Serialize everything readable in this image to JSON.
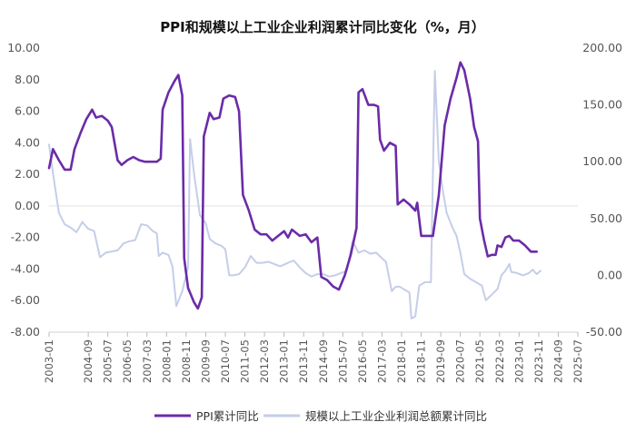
{
  "chart_data": {
    "type": "line",
    "title": "PPI和规模以上工业企业利润累计同比变化（%，月）",
    "xlabel": "",
    "ylabel_left": "",
    "ylabel_right": "",
    "ylim_left": [
      -8,
      10
    ],
    "ylim_right": [
      -50,
      200
    ],
    "yticks_left": [
      "10.00",
      "8.00",
      "6.00",
      "4.00",
      "2.00",
      "0.00",
      "-2.00",
      "-4.00",
      "-6.00",
      "-8.00"
    ],
    "yticks_right": [
      "200.00",
      "150.00",
      "100.00",
      "50.00",
      "0.00",
      "-50.00"
    ],
    "categories": [
      "2003-01",
      "2004-09",
      "2005-07",
      "2006-05",
      "2007-03",
      "2008-01",
      "2008-11",
      "2009-09",
      "2010-07",
      "2011-05",
      "2012-03",
      "2013-01",
      "2013-11",
      "2014-09",
      "2015-07",
      "2016-05",
      "2017-03",
      "2018-01",
      "2018-11",
      "2019-09",
      "2020-07",
      "2021-05",
      "2022-03",
      "2023-01",
      "2023-11",
      "2024-09",
      "2025-07"
    ],
    "grid": false,
    "legend": "bottom",
    "series": [
      {
        "name": "PPI累计同比",
        "axis": "left",
        "color": "#6B2BA8",
        "points": [
          [
            "2003-01",
            2.4
          ],
          [
            "2003-03",
            3.6
          ],
          [
            "2003-06",
            2.9
          ],
          [
            "2003-09",
            2.3
          ],
          [
            "2003-12",
            2.3
          ],
          [
            "2004-02",
            3.6
          ],
          [
            "2004-05",
            4.6
          ],
          [
            "2004-08",
            5.5
          ],
          [
            "2004-11",
            6.1
          ],
          [
            "2005-01",
            5.6
          ],
          [
            "2005-04",
            5.7
          ],
          [
            "2005-07",
            5.4
          ],
          [
            "2005-09",
            5.0
          ],
          [
            "2005-12",
            2.9
          ],
          [
            "2006-02",
            2.6
          ],
          [
            "2006-05",
            2.9
          ],
          [
            "2006-08",
            3.1
          ],
          [
            "2006-11",
            2.9
          ],
          [
            "2007-02",
            2.8
          ],
          [
            "2007-05",
            2.8
          ],
          [
            "2007-08",
            2.8
          ],
          [
            "2007-10",
            3.0
          ],
          [
            "2007-11",
            6.1
          ],
          [
            "2008-02",
            7.2
          ],
          [
            "2008-05",
            7.9
          ],
          [
            "2008-07",
            8.3
          ],
          [
            "2008-09",
            7.0
          ],
          [
            "2008-10",
            -3.3
          ],
          [
            "2008-12",
            -5.2
          ],
          [
            "2009-03",
            -6.1
          ],
          [
            "2009-05",
            -6.5
          ],
          [
            "2009-07",
            -5.8
          ],
          [
            "2009-08",
            4.4
          ],
          [
            "2009-11",
            5.9
          ],
          [
            "2010-01",
            5.5
          ],
          [
            "2010-04",
            5.6
          ],
          [
            "2010-06",
            6.8
          ],
          [
            "2010-09",
            7.0
          ],
          [
            "2010-12",
            6.9
          ],
          [
            "2011-02",
            6.0
          ],
          [
            "2011-04",
            0.7
          ],
          [
            "2011-07",
            -0.3
          ],
          [
            "2011-10",
            -1.5
          ],
          [
            "2012-01",
            -1.8
          ],
          [
            "2012-04",
            -1.8
          ],
          [
            "2012-07",
            -2.2
          ],
          [
            "2012-10",
            -1.9
          ],
          [
            "2013-01",
            -1.6
          ],
          [
            "2013-03",
            -2.0
          ],
          [
            "2013-05",
            -1.5
          ],
          [
            "2013-09",
            -1.9
          ],
          [
            "2013-12",
            -1.8
          ],
          [
            "2014-03",
            -2.3
          ],
          [
            "2014-06",
            -2.0
          ],
          [
            "2014-08",
            -4.5
          ],
          [
            "2014-11",
            -4.7
          ],
          [
            "2015-02",
            -5.1
          ],
          [
            "2015-05",
            -5.3
          ],
          [
            "2015-08",
            -4.4
          ],
          [
            "2015-11",
            -3.1
          ],
          [
            "2016-02",
            -1.4
          ],
          [
            "2016-03",
            7.2
          ],
          [
            "2016-05",
            7.4
          ],
          [
            "2016-08",
            6.4
          ],
          [
            "2016-11",
            6.4
          ],
          [
            "2017-01",
            6.3
          ],
          [
            "2017-02",
            4.2
          ],
          [
            "2017-04",
            3.5
          ],
          [
            "2017-07",
            4.0
          ],
          [
            "2017-10",
            3.8
          ],
          [
            "2017-11",
            0.1
          ],
          [
            "2018-02",
            0.4
          ],
          [
            "2018-05",
            0.1
          ],
          [
            "2018-08",
            -0.3
          ],
          [
            "2018-09",
            0.2
          ],
          [
            "2018-11",
            -1.9
          ],
          [
            "2019-03",
            -1.9
          ],
          [
            "2019-05",
            -1.9
          ],
          [
            "2019-08",
            0.7
          ],
          [
            "2019-11",
            5.1
          ],
          [
            "2020-02",
            6.8
          ],
          [
            "2020-05",
            8.1
          ],
          [
            "2020-07",
            9.1
          ],
          [
            "2020-09",
            8.6
          ],
          [
            "2020-12",
            6.8
          ],
          [
            "2021-02",
            5.0
          ],
          [
            "2021-04",
            4.1
          ],
          [
            "2021-05",
            -0.8
          ],
          [
            "2021-07",
            -2.1
          ],
          [
            "2021-09",
            -3.2
          ],
          [
            "2021-11",
            -3.1
          ],
          [
            "2022-01",
            -3.1
          ],
          [
            "2022-02",
            -2.5
          ],
          [
            "2022-04",
            -2.6
          ],
          [
            "2022-06",
            -2.0
          ],
          [
            "2022-08",
            -1.9
          ],
          [
            "2022-10",
            -2.2
          ],
          [
            "2023-01",
            -2.2
          ],
          [
            "2023-04",
            -2.5
          ],
          [
            "2023-07",
            -2.9
          ],
          [
            "2023-10",
            -2.9
          ]
        ]
      },
      {
        "name": "规模以上工业企业利润总额累计同比",
        "axis": "right",
        "color": "#C5CEE8",
        "points": [
          [
            "2003-01",
            115
          ],
          [
            "2003-03",
            90
          ],
          [
            "2003-06",
            55
          ],
          [
            "2003-09",
            45
          ],
          [
            "2003-12",
            42
          ],
          [
            "2004-03",
            38
          ],
          [
            "2004-06",
            47
          ],
          [
            "2004-09",
            41
          ],
          [
            "2004-12",
            39
          ],
          [
            "2005-03",
            16
          ],
          [
            "2005-06",
            20
          ],
          [
            "2005-09",
            21
          ],
          [
            "2005-12",
            22
          ],
          [
            "2006-03",
            28
          ],
          [
            "2006-06",
            30
          ],
          [
            "2006-09",
            31
          ],
          [
            "2006-12",
            45
          ],
          [
            "2007-03",
            44
          ],
          [
            "2007-06",
            39
          ],
          [
            "2007-08",
            37
          ],
          [
            "2007-09",
            17
          ],
          [
            "2007-11",
            20
          ],
          [
            "2008-02",
            18
          ],
          [
            "2008-04",
            8
          ],
          [
            "2008-06",
            -27
          ],
          [
            "2008-09",
            -14
          ],
          [
            "2008-12",
            7
          ],
          [
            "2009-01",
            120
          ],
          [
            "2009-03",
            90
          ],
          [
            "2009-06",
            53
          ],
          [
            "2009-09",
            46
          ],
          [
            "2009-11",
            32
          ],
          [
            "2010-02",
            28
          ],
          [
            "2010-05",
            26
          ],
          [
            "2010-07",
            23
          ],
          [
            "2010-09",
            0
          ],
          [
            "2010-11",
            0
          ],
          [
            "2011-02",
            1
          ],
          [
            "2011-05",
            7
          ],
          [
            "2011-08",
            17
          ],
          [
            "2011-11",
            11
          ],
          [
            "2012-02",
            11
          ],
          [
            "2012-05",
            12
          ],
          [
            "2012-08",
            10
          ],
          [
            "2012-11",
            8
          ],
          [
            "2013-03",
            11
          ],
          [
            "2013-06",
            13
          ],
          [
            "2013-09",
            7
          ],
          [
            "2013-12",
            2
          ],
          [
            "2014-03",
            -1
          ],
          [
            "2014-06",
            1
          ],
          [
            "2014-09",
            1
          ],
          [
            "2014-12",
            -1
          ],
          [
            "2015-03",
            0
          ],
          [
            "2015-06",
            2
          ],
          [
            "2015-09",
            4
          ],
          [
            "2015-12",
            30
          ],
          [
            "2016-03",
            20
          ],
          [
            "2016-06",
            22
          ],
          [
            "2016-09",
            19
          ],
          [
            "2016-12",
            20
          ],
          [
            "2017-03",
            15
          ],
          [
            "2017-05",
            12
          ],
          [
            "2017-08",
            -14
          ],
          [
            "2017-10",
            -10
          ],
          [
            "2017-12",
            -10
          ],
          [
            "2018-03",
            -13
          ],
          [
            "2018-05",
            -15
          ],
          [
            "2018-06",
            -38
          ],
          [
            "2018-08",
            -36
          ],
          [
            "2018-10",
            -9
          ],
          [
            "2019-01",
            -6
          ],
          [
            "2019-04",
            -6
          ],
          [
            "2019-06",
            180
          ],
          [
            "2019-08",
            100
          ],
          [
            "2019-10",
            75
          ],
          [
            "2019-12",
            55
          ],
          [
            "2020-03",
            42
          ],
          [
            "2020-05",
            35
          ],
          [
            "2020-07",
            20
          ],
          [
            "2020-09",
            1
          ],
          [
            "2020-12",
            -3
          ],
          [
            "2021-03",
            -6
          ],
          [
            "2021-06",
            -9
          ],
          [
            "2021-08",
            -22
          ],
          [
            "2021-11",
            -17
          ],
          [
            "2022-02",
            -12
          ],
          [
            "2022-04",
            0
          ],
          [
            "2022-06",
            4
          ],
          [
            "2022-08",
            10
          ],
          [
            "2022-09",
            3
          ],
          [
            "2022-12",
            2
          ],
          [
            "2023-03",
            0
          ],
          [
            "2023-06",
            2
          ],
          [
            "2023-08",
            5
          ],
          [
            "2023-10",
            1
          ],
          [
            "2023-12",
            4
          ]
        ]
      }
    ]
  }
}
